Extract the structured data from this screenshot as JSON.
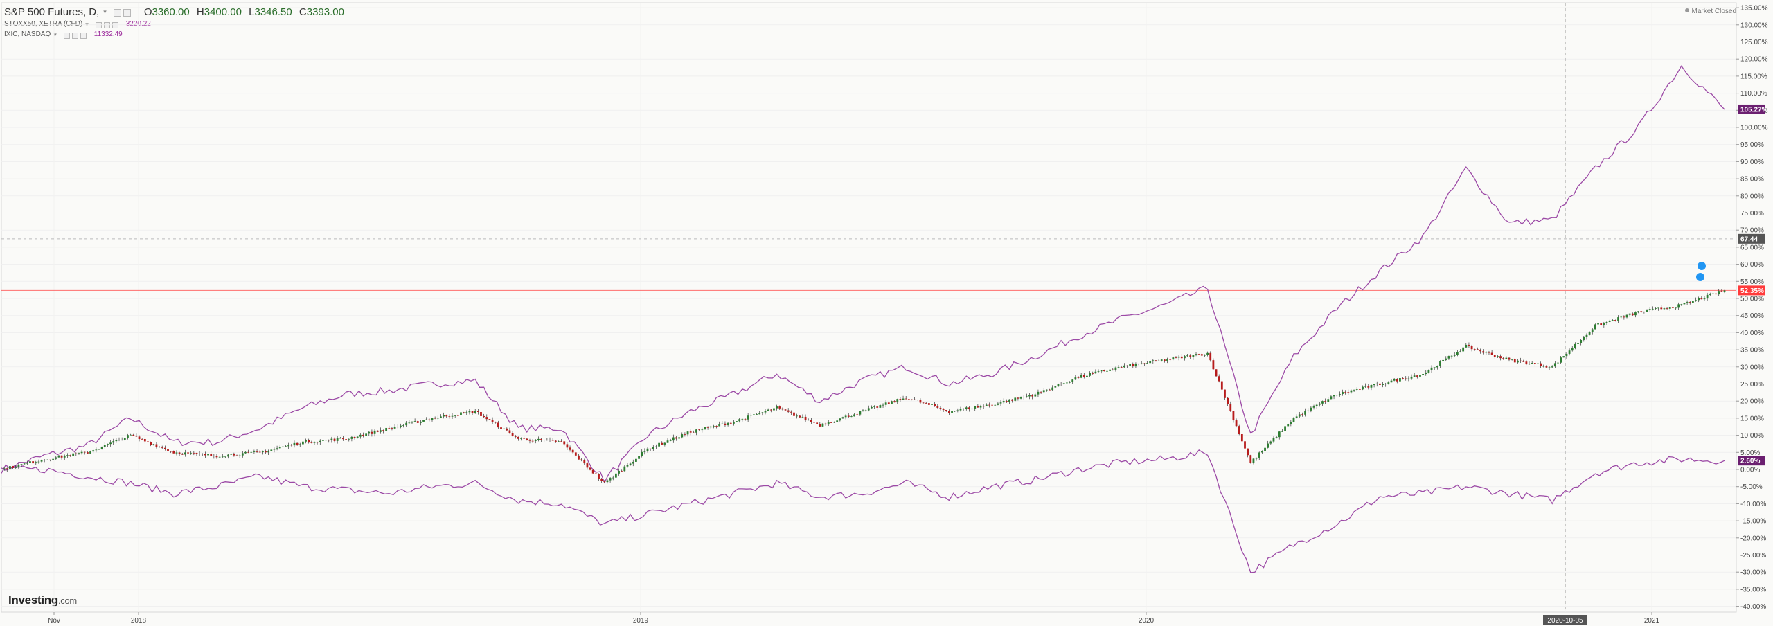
{
  "legend": {
    "main": {
      "symbol": "S&P 500 Futures, D,",
      "ohlc": [
        {
          "k": "O",
          "v": "3360.00"
        },
        {
          "k": "H",
          "v": "3400.00"
        },
        {
          "k": "L",
          "v": "3346.50"
        },
        {
          "k": "C",
          "v": "3393.00"
        }
      ]
    },
    "compare": [
      {
        "symbol": "STOXX50, XETRA (CFD)",
        "value": "3220.22"
      },
      {
        "symbol": "IXIC, NASDAQ",
        "value": "11332.49"
      }
    ]
  },
  "market_status": "Market Closed",
  "logo": {
    "name": "Investing",
    "suffix": ".com"
  },
  "colors": {
    "compare_line": "#9c4aa6",
    "candle_up": "#2e7d32",
    "candle_down": "#b71c1c",
    "last_price_line": "#ff4b4b",
    "background": "#fafaf8"
  },
  "chart_data": {
    "type": "line",
    "x_tick_labels": [
      "Nov",
      "2018",
      "2019",
      "2020",
      "2020-10-05",
      "2021"
    ],
    "y_unit": "%",
    "ylim": [
      -40,
      135
    ],
    "y_ticks": [
      -40,
      -35,
      -30,
      -25,
      -20,
      -15,
      -10,
      -5,
      0,
      5,
      10,
      15,
      20,
      25,
      30,
      35,
      40,
      45,
      50,
      55,
      60,
      65,
      70,
      75,
      80,
      85,
      90,
      95,
      100,
      105,
      110,
      115,
      120,
      125,
      130,
      135
    ],
    "grid": true,
    "x": [
      "2017-10",
      "2017-11",
      "2017-12",
      "2018-01",
      "2018-02",
      "2018-03",
      "2018-04",
      "2018-05",
      "2018-06",
      "2018-07",
      "2018-08",
      "2018-09",
      "2018-10",
      "2018-11",
      "2018-12",
      "2019-01",
      "2019-02",
      "2019-03",
      "2019-04",
      "2019-05",
      "2019-06",
      "2019-07",
      "2019-08",
      "2019-09",
      "2019-10",
      "2019-11",
      "2019-12",
      "2020-01",
      "2020-02",
      "2020-03",
      "2020-04",
      "2020-05",
      "2020-06",
      "2020-07",
      "2020-08",
      "2020-09",
      "2020-10",
      "2020-11",
      "2020-12",
      "2021-01",
      "2021-02"
    ],
    "series": [
      {
        "name": "S&P 500 Futures",
        "role": "main",
        "values": [
          0,
          3,
          5,
          10,
          5,
          4,
          5,
          8,
          9,
          12,
          15,
          17,
          9,
          8,
          -4,
          6,
          11,
          14,
          18,
          13,
          17,
          21,
          17,
          19,
          22,
          27,
          30,
          32,
          34,
          2,
          15,
          22,
          25,
          28,
          36,
          32,
          30,
          42,
          46,
          48,
          52.35
        ]
      },
      {
        "name": "IXIC, NASDAQ",
        "role": "compare",
        "values": [
          0,
          4,
          7,
          15,
          8,
          8,
          12,
          18,
          22,
          23,
          25,
          26,
          12,
          12,
          -3,
          10,
          17,
          22,
          28,
          20,
          26,
          30,
          25,
          28,
          33,
          39,
          44,
          48,
          53,
          10,
          33,
          47,
          58,
          68,
          88,
          72,
          73,
          88,
          100,
          118,
          105.27
        ]
      },
      {
        "name": "STOXX50, XETRA (CFD)",
        "role": "compare",
        "values": [
          0,
          0,
          -2,
          -4,
          -7,
          -5,
          -2,
          -5,
          -6,
          -7,
          -5,
          -4,
          -9,
          -10,
          -16,
          -13,
          -10,
          -7,
          -4,
          -8,
          -7,
          -4,
          -8,
          -5,
          -3,
          0,
          2,
          3,
          5,
          -30,
          -22,
          -16,
          -8,
          -7,
          -5,
          -7,
          -9,
          -1,
          2,
          3,
          2.6
        ]
      }
    ],
    "price_labels": [
      {
        "value": 105.27,
        "text": "105.27%",
        "color": "#6b1f70"
      },
      {
        "value": 67.44,
        "text": "67.44",
        "color": "#555555"
      },
      {
        "value": 52.35,
        "text": "52.35%",
        "color": "#ff3b3b"
      },
      {
        "value": 2.6,
        "text": "2.60%",
        "color": "#6b1f70"
      }
    ],
    "reference_line_value": 67.44,
    "last_price_value": 52.35
  }
}
